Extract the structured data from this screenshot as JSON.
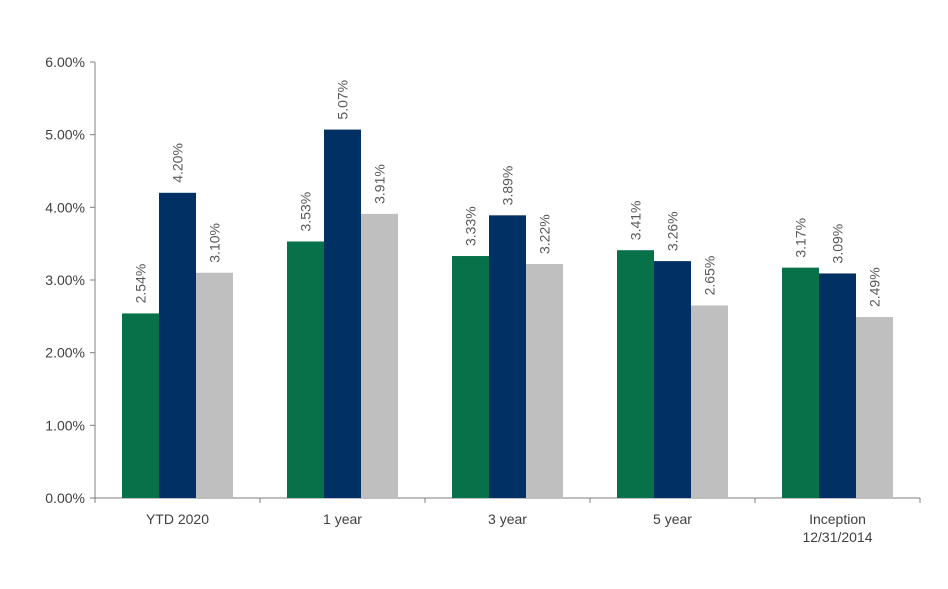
{
  "chart_data": {
    "type": "bar",
    "title": "",
    "xlabel": "",
    "ylabel": "",
    "categories": [
      [
        "YTD 2020"
      ],
      [
        "1 year"
      ],
      [
        "3 year"
      ],
      [
        "5 year"
      ],
      [
        "Inception",
        "12/31/2014"
      ]
    ],
    "series": [
      {
        "color": "#077249",
        "values": [
          2.54,
          3.53,
          3.33,
          3.41,
          3.17
        ],
        "labels": [
          "2.54%",
          "3.53%",
          "3.33%",
          "3.41%",
          "3.17%"
        ]
      },
      {
        "color": "#003064",
        "values": [
          4.2,
          5.07,
          3.89,
          3.26,
          3.09
        ],
        "labels": [
          "4.20%",
          "5.07%",
          "3.89%",
          "3.26%",
          "3.09%"
        ]
      },
      {
        "color": "#bfbfbf",
        "values": [
          3.1,
          3.91,
          3.22,
          2.65,
          2.49
        ],
        "labels": [
          "3.10%",
          "3.91%",
          "3.22%",
          "2.65%",
          "2.49%"
        ]
      }
    ],
    "ylim": [
      0,
      6
    ],
    "yticks": [
      0,
      1,
      2,
      3,
      4,
      5,
      6
    ],
    "ytick_labels": [
      "0.00%",
      "1.00%",
      "2.00%",
      "3.00%",
      "4.00%",
      "5.00%",
      "6.00%"
    ],
    "grid": false,
    "legend": "none",
    "axis_color": "#7f7f7f"
  }
}
